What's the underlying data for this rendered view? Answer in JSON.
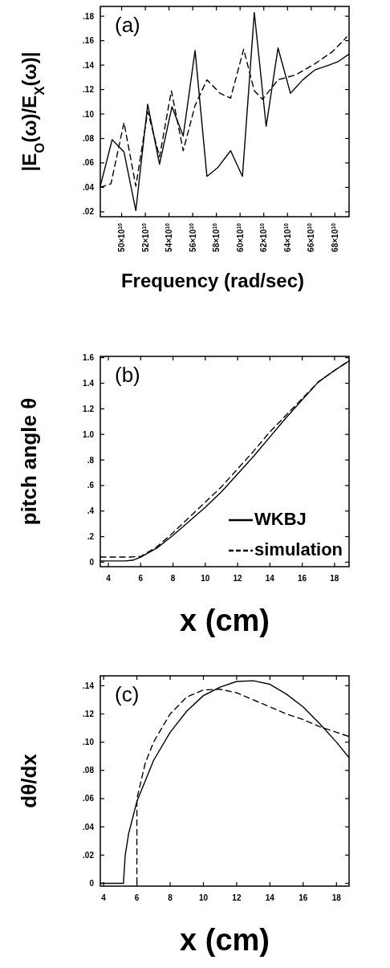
{
  "chart_data": [
    {
      "type": "line",
      "annotations": [
        "(a)"
      ],
      "ylabel": "|E$_{O}$(ω)/E$_{X}$(ω)|",
      "xlabel": "Frequency  (rad/sec)",
      "xlim": [
        482000000000.0,
        692000000000.0
      ],
      "xticks": [
        {
          "value": 500000000000.0,
          "label": "50×10$^{10}$"
        },
        {
          "value": 520000000000.0,
          "label": "52×10$^{10}$"
        },
        {
          "value": 540000000000.0,
          "label": "54×10$^{10}$"
        },
        {
          "value": 560000000000.0,
          "label": "56×10$^{10}$"
        },
        {
          "value": 580000000000.0,
          "label": "58×10$^{10}$"
        },
        {
          "value": 600000000000.0,
          "label": "60×10$^{10}$"
        },
        {
          "value": 620000000000.0,
          "label": "62×10$^{10}$"
        },
        {
          "value": 640000000000.0,
          "label": "64×10$^{10}$"
        },
        {
          "value": 660000000000.0,
          "label": "66×10$^{10}$"
        },
        {
          "value": 680000000000.0,
          "label": "68×10$^{10}$"
        }
      ],
      "ylim": [
        0.016,
        0.188
      ],
      "yticks": [
        {
          "value": 0.02,
          "label": ".02"
        },
        {
          "value": 0.04,
          "label": ".04"
        },
        {
          "value": 0.06,
          "label": ".06"
        },
        {
          "value": 0.08,
          "label": ".08"
        },
        {
          "value": 0.1,
          "label": ".10"
        },
        {
          "value": 0.12,
          "label": ".12"
        },
        {
          "value": 0.14,
          "label": ".14"
        },
        {
          "value": 0.16,
          "label": ".16"
        },
        {
          "value": 0.18,
          "label": ".18"
        }
      ],
      "grid": false,
      "legend": false,
      "series": [
        {
          "color": "#000000",
          "line_style": "solid",
          "x": [
            482000000000.0,
            492000000000.0,
            502000000000.0,
            512000000000.0,
            522000000000.0,
            532000000000.0,
            542500000000.0,
            552000000000.0,
            562000000000.0,
            572000000000.0,
            581000000000.0,
            592000000000.0,
            602000000000.0,
            612000000000.0,
            622000000000.0,
            632000000000.0,
            642500000000.0,
            653000000000.0,
            663000000000.0,
            675000000000.0,
            683000000000.0,
            692000000000.0
          ],
          "values": [
            0.041,
            0.079,
            0.069,
            0.021,
            0.108,
            0.059,
            0.106,
            0.082,
            0.152,
            0.049,
            0.056,
            0.07,
            0.049,
            0.183,
            0.09,
            0.154,
            0.117,
            0.128,
            0.136,
            0.14,
            0.143,
            0.149
          ]
        },
        {
          "color": "#000000",
          "line_style": "dashed",
          "x": [
            482000000000.0,
            491000000000.0,
            502000000000.0,
            512000000000.0,
            522000000000.0,
            532000000000.0,
            542000000000.0,
            552000000000.0,
            562000000000.0,
            572000000000.0,
            583000000000.0,
            592000000000.0,
            603000000000.0,
            612000000000.0,
            619000000000.0,
            632000000000.0,
            647000000000.0,
            663000000000.0,
            678000000000.0,
            690000000000.0
          ],
          "values": [
            0.04,
            0.043,
            0.093,
            0.041,
            0.102,
            0.065,
            0.119,
            0.07,
            0.107,
            0.128,
            0.117,
            0.113,
            0.153,
            0.119,
            0.112,
            0.128,
            0.132,
            0.141,
            0.151,
            0.163
          ]
        }
      ]
    },
    {
      "type": "line",
      "annotations": [
        "(b)"
      ],
      "ylabel": "pitch angle θ",
      "xlabel": "x (cm)",
      "xlim": [
        3.5,
        18.9
      ],
      "xticks": [
        4,
        6,
        8,
        10,
        12,
        14,
        16,
        18
      ],
      "ylim": [
        -0.035,
        1.61
      ],
      "yticks": [
        0,
        {
          "value": 0.2,
          "label": ".2"
        },
        {
          "value": 0.4,
          "label": ".4"
        },
        {
          "value": 0.6,
          "label": ".6"
        },
        {
          "value": 0.8,
          "label": ".8"
        },
        {
          "value": 1.0,
          "label": "1.0"
        },
        {
          "value": 1.2,
          "label": "1.2"
        },
        {
          "value": 1.4,
          "label": "1.4"
        },
        {
          "value": 1.6,
          "label": "1.6"
        }
      ],
      "grid": false,
      "legend": "bottom right",
      "series": [
        {
          "name": "WKBJ",
          "color": "#000000",
          "line_style": "solid",
          "x": [
            3.5,
            5.0,
            5.5,
            6,
            7,
            8,
            9,
            10,
            11,
            12,
            13,
            14,
            15,
            16,
            17,
            18,
            18.9
          ],
          "values": [
            0.01,
            0.01,
            0.015,
            0.04,
            0.11,
            0.21,
            0.32,
            0.43,
            0.55,
            0.69,
            0.83,
            0.98,
            1.13,
            1.27,
            1.41,
            1.5,
            1.575
          ]
        },
        {
          "name": "simulation",
          "color": "#000000",
          "line_style": "dashed",
          "x": [
            3.5,
            5.3,
            6,
            7,
            8,
            9,
            10,
            11,
            12,
            13,
            14,
            15,
            16,
            17,
            18,
            18.9
          ],
          "values": [
            0.04,
            0.04,
            0.045,
            0.12,
            0.23,
            0.35,
            0.47,
            0.59,
            0.73,
            0.87,
            1.02,
            1.15,
            1.28,
            1.41,
            1.5,
            1.575
          ]
        }
      ]
    },
    {
      "type": "line",
      "annotations": [
        "(c)"
      ],
      "ylabel": "dθ/dx",
      "xlabel": "x (cm)",
      "xlim": [
        3.8,
        18.76
      ],
      "xticks": [
        4,
        6,
        8,
        10,
        12,
        14,
        16,
        18
      ],
      "ylim": [
        -0.002,
        0.147
      ],
      "yticks": [
        0,
        {
          "value": 0.02,
          "label": ".02"
        },
        {
          "value": 0.04,
          "label": ".04"
        },
        {
          "value": 0.06,
          "label": ".06"
        },
        {
          "value": 0.08,
          "label": ".08"
        },
        {
          "value": 0.1,
          "label": ".10"
        },
        {
          "value": 0.12,
          "label": ".12"
        },
        {
          "value": 0.14,
          "label": ".14"
        }
      ],
      "grid": false,
      "legend": false,
      "series": [
        {
          "color": "#000000",
          "line_style": "solid",
          "x": [
            3.8,
            5.2,
            5.2,
            5.3,
            5.5,
            6,
            7,
            8,
            9,
            10,
            11,
            12,
            13,
            14,
            15,
            16,
            17,
            18,
            18.76
          ],
          "values": [
            0,
            0,
            0.002,
            0.02,
            0.035,
            0.058,
            0.087,
            0.107,
            0.122,
            0.133,
            0.139,
            0.143,
            0.1435,
            0.141,
            0.134,
            0.125,
            0.113,
            0.1,
            0.089
          ]
        },
        {
          "color": "#000000",
          "line_style": "dashed",
          "x": [
            6,
            6,
            6.5,
            7,
            8,
            9,
            10,
            11,
            12,
            13,
            14,
            15,
            16,
            17,
            18,
            18.76
          ],
          "values": [
            0,
            0.06,
            0.085,
            0.1,
            0.12,
            0.132,
            0.137,
            0.1375,
            0.135,
            0.13,
            0.125,
            0.12,
            0.116,
            0.111,
            0.107,
            0.104
          ]
        }
      ]
    }
  ]
}
